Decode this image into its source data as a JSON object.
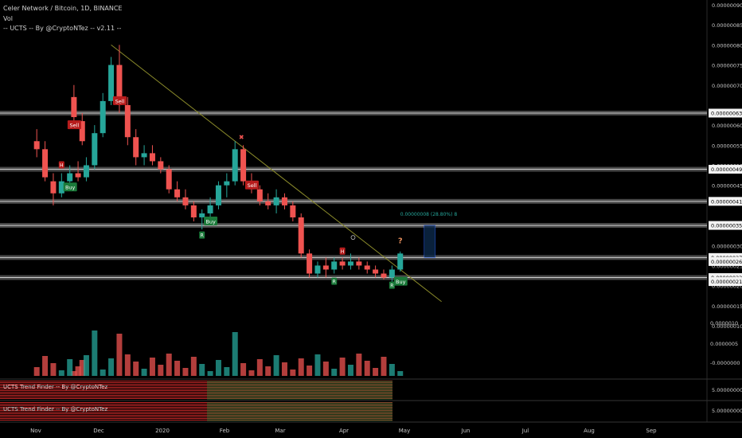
{
  "header": {
    "symbol_line": "Celer Network / Bitcoin, 1D, BINANCE",
    "vol_label": "Vol",
    "indicator_line": "-- UCTS -- By @CryptoNTez -- v2.11 --"
  },
  "colors": {
    "background": "#000000",
    "up": "#26a69a",
    "down": "#ef5350",
    "level": "#555555",
    "trendline": "#8a8a2a",
    "buy": "#1b7a3a",
    "sell": "#b71c1c",
    "trend_green": "#1f8f3a",
    "trend_red": "#c62828"
  },
  "chart_data": [
    {
      "type": "candlestick",
      "title": "Celer Network / Bitcoin, 1D, BINANCE",
      "x_axis": {
        "tick_labels": [
          "Nov",
          "Dec",
          "2020",
          "Feb",
          "Mar",
          "Apr",
          "May",
          "Jun",
          "Jul",
          "Aug",
          "Sep"
        ]
      },
      "y_axis": {
        "scale": "linear",
        "range": [
          1e-07,
          9e-07
        ],
        "tick_labels": [
          "0.00000090",
          "0.00000085",
          "0.00000080",
          "0.00000075",
          "0.00000070",
          "0.00000060",
          "0.00000055",
          "0.00000050",
          "0.00000045",
          "0.00000030",
          "0.00000025",
          "0.00000020",
          "0.00000015",
          "0.00000010"
        ],
        "level_labels": [
          "0.00000063",
          "0.00000049",
          "0.00000041",
          "0.00000035",
          "0.00000027",
          "0.00000026",
          "0.00000022",
          "0.00000021"
        ]
      },
      "price_levels": [
        6.3e-07,
        4.9e-07,
        4.1e-07,
        3.5e-07,
        2.7e-07,
        2.2e-07
      ],
      "candles": [
        {
          "x": "Oct 26",
          "o": 6.7e-07,
          "h": 7e-07,
          "l": 6.1e-07,
          "c": 6.2e-07
        },
        {
          "x": "Oct 30",
          "o": 6.1e-07,
          "h": 6.3e-07,
          "l": 5.5e-07,
          "c": 5.6e-07
        },
        {
          "x": "Nov 3",
          "o": 5.6e-07,
          "h": 5.9e-07,
          "l": 5.2e-07,
          "c": 5.4e-07
        },
        {
          "x": "Nov 7",
          "o": 5.4e-07,
          "h": 5.6e-07,
          "l": 4.6e-07,
          "c": 4.7e-07
        },
        {
          "x": "Nov 11",
          "o": 4.6e-07,
          "h": 4.8e-07,
          "l": 4e-07,
          "c": 4.3e-07
        },
        {
          "x": "Nov 15",
          "o": 4.3e-07,
          "h": 4.8e-07,
          "l": 4.2e-07,
          "c": 4.6e-07
        },
        {
          "x": "Nov 19",
          "o": 4.6e-07,
          "h": 5e-07,
          "l": 4.5e-07,
          "c": 4.8e-07
        },
        {
          "x": "Nov 23",
          "o": 4.8e-07,
          "h": 5.1e-07,
          "l": 4.6e-07,
          "c": 4.7e-07
        },
        {
          "x": "Nov 27",
          "o": 4.7e-07,
          "h": 5.2e-07,
          "l": 4.6e-07,
          "c": 5e-07
        },
        {
          "x": "Dec 1",
          "o": 5e-07,
          "h": 6e-07,
          "l": 4.9e-07,
          "c": 5.8e-07
        },
        {
          "x": "Dec 5",
          "o": 5.8e-07,
          "h": 6.8e-07,
          "l": 5.7e-07,
          "c": 6.6e-07
        },
        {
          "x": "Dec 9",
          "o": 6.6e-07,
          "h": 7.7e-07,
          "l": 6.5e-07,
          "c": 7.5e-07
        },
        {
          "x": "Dec 13",
          "o": 7.5e-07,
          "h": 8e-07,
          "l": 6.3e-07,
          "c": 6.5e-07
        },
        {
          "x": "Dec 17",
          "o": 6.5e-07,
          "h": 6.7e-07,
          "l": 5.5e-07,
          "c": 5.7e-07
        },
        {
          "x": "Dec 21",
          "o": 5.7e-07,
          "h": 5.9e-07,
          "l": 5e-07,
          "c": 5.2e-07
        },
        {
          "x": "Dec 25",
          "o": 5.2e-07,
          "h": 5.5e-07,
          "l": 5e-07,
          "c": 5.3e-07
        },
        {
          "x": "Dec 29",
          "o": 5.3e-07,
          "h": 5.5e-07,
          "l": 5e-07,
          "c": 5.1e-07
        },
        {
          "x": "Jan 2",
          "o": 5.1e-07,
          "h": 5.2e-07,
          "l": 4.8e-07,
          "c": 4.9e-07
        },
        {
          "x": "Jan 6",
          "o": 4.9e-07,
          "h": 5e-07,
          "l": 4.3e-07,
          "c": 4.4e-07
        },
        {
          "x": "Jan 10",
          "o": 4.4e-07,
          "h": 4.6e-07,
          "l": 4.1e-07,
          "c": 4.2e-07
        },
        {
          "x": "Jan 14",
          "o": 4.2e-07,
          "h": 4.4e-07,
          "l": 3.9e-07,
          "c": 4e-07
        },
        {
          "x": "Jan 18",
          "o": 4e-07,
          "h": 4.1e-07,
          "l": 3.6e-07,
          "c": 3.7e-07
        },
        {
          "x": "Jan 22",
          "o": 3.7e-07,
          "h": 3.9e-07,
          "l": 3.4e-07,
          "c": 3.8e-07
        },
        {
          "x": "Jan 26",
          "o": 3.8e-07,
          "h": 4.2e-07,
          "l": 3.7e-07,
          "c": 4e-07
        },
        {
          "x": "Jan 30",
          "o": 4e-07,
          "h": 4.6e-07,
          "l": 3.9e-07,
          "c": 4.5e-07
        },
        {
          "x": "Feb 3",
          "o": 4.5e-07,
          "h": 4.8e-07,
          "l": 4.2e-07,
          "c": 4.6e-07
        },
        {
          "x": "Feb 7",
          "o": 4.6e-07,
          "h": 5.6e-07,
          "l": 4.5e-07,
          "c": 5.4e-07
        },
        {
          "x": "Feb 11",
          "o": 5.4e-07,
          "h": 5.5e-07,
          "l": 4.5e-07,
          "c": 4.6e-07
        },
        {
          "x": "Feb 15",
          "o": 4.6e-07,
          "h": 4.8e-07,
          "l": 4.3e-07,
          "c": 4.4e-07
        },
        {
          "x": "Feb 19",
          "o": 4.4e-07,
          "h": 4.5e-07,
          "l": 4e-07,
          "c": 4.1e-07
        },
        {
          "x": "Feb 23",
          "o": 4.1e-07,
          "h": 4.3e-07,
          "l": 3.9e-07,
          "c": 4e-07
        },
        {
          "x": "Feb 27",
          "o": 4e-07,
          "h": 4.4e-07,
          "l": 3.8e-07,
          "c": 4.2e-07
        },
        {
          "x": "Mar 2",
          "o": 4.2e-07,
          "h": 4.3e-07,
          "l": 3.9e-07,
          "c": 4e-07
        },
        {
          "x": "Mar 6",
          "o": 4e-07,
          "h": 4.1e-07,
          "l": 3.6e-07,
          "c": 3.7e-07
        },
        {
          "x": "Mar 10",
          "o": 3.7e-07,
          "h": 3.8e-07,
          "l": 2.7e-07,
          "c": 2.8e-07
        },
        {
          "x": "Mar 14",
          "o": 2.8e-07,
          "h": 2.9e-07,
          "l": 2.2e-07,
          "c": 2.3e-07
        },
        {
          "x": "Mar 18",
          "o": 2.3e-07,
          "h": 2.6e-07,
          "l": 2.2e-07,
          "c": 2.5e-07
        },
        {
          "x": "Mar 22",
          "o": 2.5e-07,
          "h": 2.7e-07,
          "l": 2.2e-07,
          "c": 2.4e-07
        },
        {
          "x": "Mar 26",
          "o": 2.4e-07,
          "h": 2.7e-07,
          "l": 2.3e-07,
          "c": 2.6e-07
        },
        {
          "x": "Mar 30",
          "o": 2.6e-07,
          "h": 2.7e-07,
          "l": 2.4e-07,
          "c": 2.5e-07
        },
        {
          "x": "Apr 3",
          "o": 2.5e-07,
          "h": 2.8e-07,
          "l": 2.4e-07,
          "c": 2.6e-07
        },
        {
          "x": "Apr 7",
          "o": 2.6e-07,
          "h": 2.7e-07,
          "l": 2.4e-07,
          "c": 2.5e-07
        },
        {
          "x": "Apr 11",
          "o": 2.5e-07,
          "h": 2.6e-07,
          "l": 2.3e-07,
          "c": 2.4e-07
        },
        {
          "x": "Apr 15",
          "o": 2.4e-07,
          "h": 2.5e-07,
          "l": 2.2e-07,
          "c": 2.3e-07
        },
        {
          "x": "Apr 19",
          "o": 2.3e-07,
          "h": 2.4e-07,
          "l": 2.15e-07,
          "c": 2.2e-07
        },
        {
          "x": "Apr 23",
          "o": 2.2e-07,
          "h": 2.5e-07,
          "l": 2.1e-07,
          "c": 2.4e-07
        },
        {
          "x": "Apr 27",
          "o": 2.4e-07,
          "h": 2.85e-07,
          "l": 2.35e-07,
          "c": 2.8e-07
        }
      ],
      "volume_axis": {
        "tick_labels": [
          "0.0000010",
          "0.0000005",
          "-0.0000000"
        ]
      },
      "annotations": {
        "signals": [
          {
            "label": "Sell",
            "x": "Oct 26",
            "price": 6e-07,
            "kind": "sell"
          },
          {
            "label": "Sell",
            "x": "Dec 13",
            "price": 6.6e-07,
            "kind": "sell"
          },
          {
            "label": "Sell",
            "x": "Feb 15",
            "price": 4.5e-07,
            "kind": "sell"
          },
          {
            "label": "Buy",
            "x": "Nov 19",
            "price": 4.45e-07,
            "kind": "buy"
          },
          {
            "label": "Buy",
            "x": "Jan 26",
            "price": 3.6e-07,
            "kind": "buy"
          },
          {
            "label": "Buy",
            "x": "Apr 27",
            "price": 2.1e-07,
            "kind": "buy"
          }
        ],
        "markers": [
          {
            "label": "H",
            "x": "Nov 15",
            "price": 5e-07,
            "kind": "high"
          },
          {
            "label": "H",
            "x": "Mar 30",
            "price": 2.85e-07,
            "kind": "high"
          },
          {
            "label": "R",
            "x": "Jan 22",
            "price": 3.25e-07,
            "kind": "low"
          },
          {
            "label": "R",
            "x": "Mar 26",
            "price": 2.1e-07,
            "kind": "low"
          },
          {
            "label": "R",
            "x": "Apr 23",
            "price": 2e-07,
            "kind": "low"
          }
        ],
        "measure_label": "0.00000008 (28.80%) 8",
        "question_mark": "?",
        "x_mark": "✖"
      },
      "trendline": {
        "from": {
          "x": "Dec 9",
          "price": 8e-07
        },
        "to": {
          "x": "May 17",
          "price": 1.6e-07
        }
      }
    },
    {
      "type": "heatmap",
      "title": "UCTS Trend Finder -- By @CryptoNTez",
      "y_tick": "5.00000000"
    },
    {
      "type": "heatmap",
      "title": "UCTS Trend Finder -- By @CryptoNTez",
      "y_tick": "5.00000000"
    }
  ]
}
